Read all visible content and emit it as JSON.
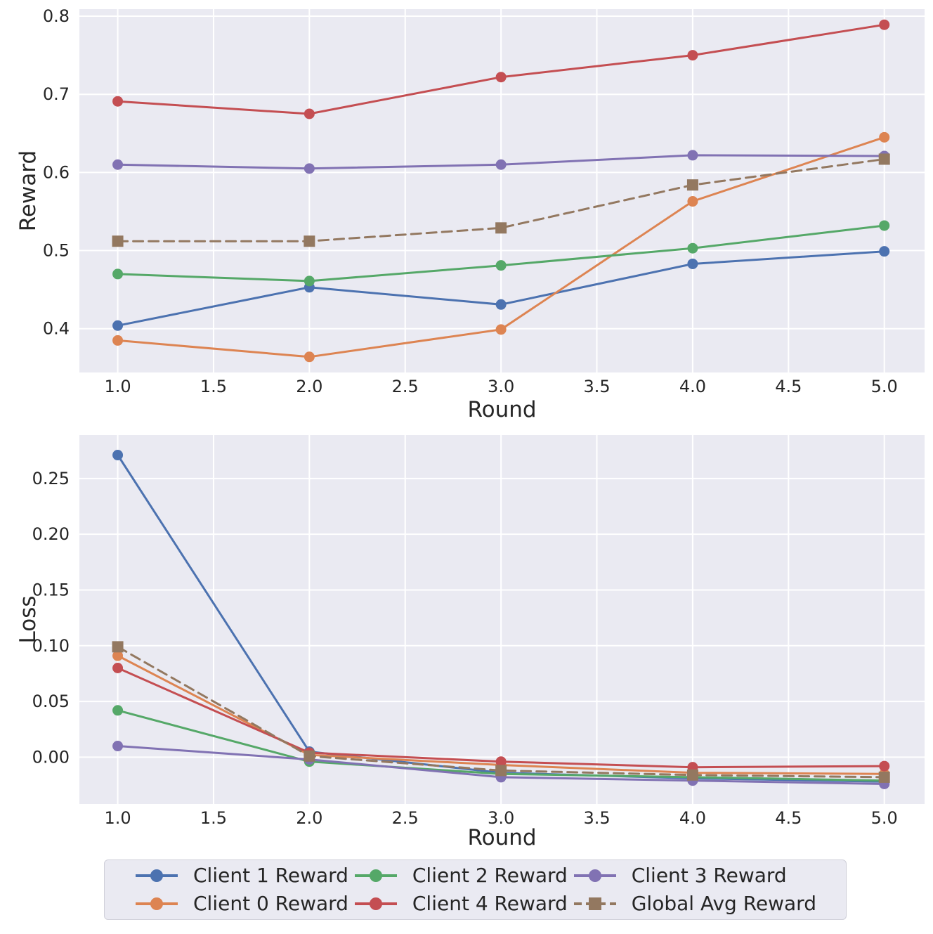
{
  "page": {
    "background": "#ffffff"
  },
  "style": {
    "axes_background": "#eaeaf2",
    "grid_color": "#ffffff",
    "text_color": "#262626",
    "legend_background": "#eaeaf2",
    "legend_border": "#cfcfd9"
  },
  "chart_data": [
    {
      "type": "line",
      "title": "",
      "xlabel": "Round",
      "ylabel": "Reward",
      "x": [
        1,
        2,
        3,
        4,
        5
      ],
      "xlim": [
        0.8,
        5.21
      ],
      "ylim": [
        0.344,
        0.809
      ],
      "xticks": [
        1.0,
        1.5,
        2.0,
        2.5,
        3.0,
        3.5,
        4.0,
        4.5,
        5.0
      ],
      "xtick_labels": [
        "1.0",
        "1.5",
        "2.0",
        "2.5",
        "3.0",
        "3.5",
        "4.0",
        "4.5",
        "5.0"
      ],
      "yticks": [
        0.4,
        0.5,
        0.6,
        0.7,
        0.8
      ],
      "ytick_labels": [
        "0.4",
        "0.5",
        "0.6",
        "0.7",
        "0.8"
      ],
      "grid": true,
      "legend_position": "none",
      "series": [
        {
          "name": "Client 1 Reward",
          "color": "#4C72B0",
          "line": "solid",
          "marker": "circle",
          "values": [
            0.404,
            0.453,
            0.431,
            0.483,
            0.499
          ]
        },
        {
          "name": "Client 0 Reward",
          "color": "#DD8452",
          "line": "solid",
          "marker": "circle",
          "values": [
            0.385,
            0.364,
            0.399,
            0.563,
            0.645
          ]
        },
        {
          "name": "Client 2 Reward",
          "color": "#55A868",
          "line": "solid",
          "marker": "circle",
          "values": [
            0.47,
            0.461,
            0.481,
            0.503,
            0.532
          ]
        },
        {
          "name": "Client 4 Reward",
          "color": "#C44E52",
          "line": "solid",
          "marker": "circle",
          "values": [
            0.691,
            0.675,
            0.722,
            0.75,
            0.789
          ]
        },
        {
          "name": "Client 3 Reward",
          "color": "#8172B3",
          "line": "solid",
          "marker": "circle",
          "values": [
            0.61,
            0.605,
            0.61,
            0.622,
            0.621
          ]
        },
        {
          "name": "Global Avg Reward",
          "color": "#937860",
          "line": "dashed",
          "marker": "square",
          "values": [
            0.512,
            0.512,
            0.529,
            0.584,
            0.617
          ]
        }
      ]
    },
    {
      "type": "line",
      "title": "",
      "xlabel": "Round",
      "ylabel": "Loss",
      "x": [
        1,
        2,
        3,
        4,
        5
      ],
      "xlim": [
        0.8,
        5.21
      ],
      "ylim": [
        -0.042,
        0.289
      ],
      "xticks": [
        1.0,
        1.5,
        2.0,
        2.5,
        3.0,
        3.5,
        4.0,
        4.5,
        5.0
      ],
      "xtick_labels": [
        "1.0",
        "1.5",
        "2.0",
        "2.5",
        "3.0",
        "3.5",
        "4.0",
        "4.5",
        "5.0"
      ],
      "yticks": [
        0.0,
        0.05,
        0.1,
        0.15,
        0.2,
        0.25
      ],
      "ytick_labels": [
        "0.00",
        "0.05",
        "0.10",
        "0.15",
        "0.20",
        "0.25"
      ],
      "grid": true,
      "legend_position": "below",
      "series": [
        {
          "name": "Client 1 Reward",
          "color": "#4C72B0",
          "line": "solid",
          "marker": "circle",
          "values": [
            0.271,
            0.005,
            -0.014,
            -0.019,
            -0.022
          ]
        },
        {
          "name": "Client 0 Reward",
          "color": "#DD8452",
          "line": "solid",
          "marker": "circle",
          "values": [
            0.091,
            0.002,
            -0.007,
            -0.014,
            -0.015
          ]
        },
        {
          "name": "Client 2 Reward",
          "color": "#55A868",
          "line": "solid",
          "marker": "circle",
          "values": [
            0.042,
            -0.004,
            -0.015,
            -0.018,
            -0.021
          ]
        },
        {
          "name": "Client 4 Reward",
          "color": "#C44E52",
          "line": "solid",
          "marker": "circle",
          "values": [
            0.08,
            0.004,
            -0.004,
            -0.009,
            -0.008
          ]
        },
        {
          "name": "Client 3 Reward",
          "color": "#8172B3",
          "line": "solid",
          "marker": "circle",
          "values": [
            0.01,
            -0.002,
            -0.018,
            -0.021,
            -0.024
          ]
        },
        {
          "name": "Global Avg Reward",
          "color": "#937860",
          "line": "dashed",
          "marker": "square",
          "values": [
            0.099,
            0.001,
            -0.012,
            -0.016,
            -0.018
          ]
        }
      ]
    }
  ],
  "legend": {
    "columns": [
      [
        "Client 1 Reward",
        "Client 0 Reward"
      ],
      [
        "Client 2 Reward",
        "Client 4 Reward"
      ],
      [
        "Client 3 Reward",
        "Global Avg Reward"
      ]
    ]
  }
}
